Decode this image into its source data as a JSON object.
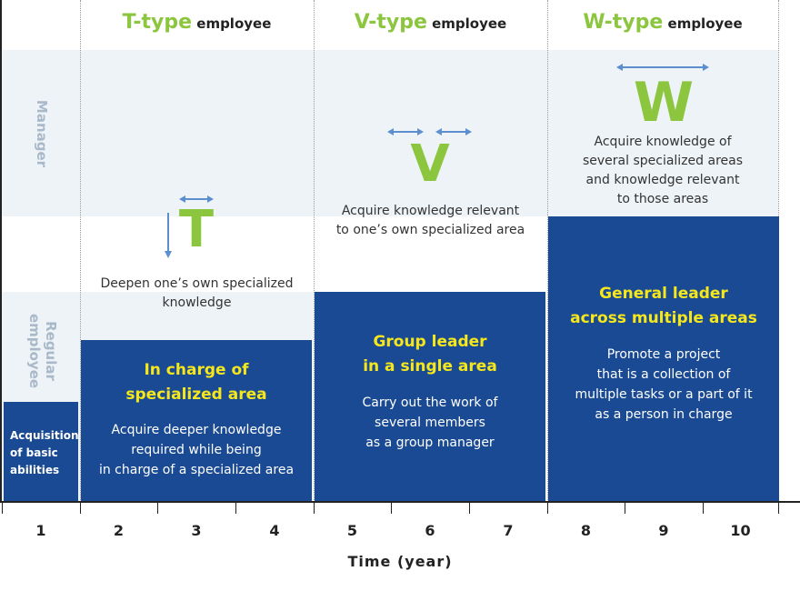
{
  "columns": [
    {
      "letter": "T-type",
      "suffix": " employee"
    },
    {
      "letter": "V-type",
      "suffix": " employee"
    },
    {
      "letter": "W-type",
      "suffix": " employee"
    }
  ],
  "side_labels": {
    "manager": "Manager",
    "regular_line1": "Regular",
    "regular_line2": "employee"
  },
  "boxes": {
    "basic": {
      "lines": [
        "Acquisition",
        "of basic",
        "abilities"
      ]
    },
    "t": {
      "title": [
        "In charge of",
        "specialized area"
      ],
      "desc": [
        "Acquire deeper knowledge",
        "required while being",
        "in charge of a specialized area"
      ]
    },
    "v": {
      "title": [
        "Group leader",
        "in a single area"
      ],
      "desc": [
        "Carry out the work of",
        "several members",
        "as a group manager"
      ]
    },
    "w": {
      "title": [
        "General leader",
        "across multiple areas"
      ],
      "desc": [
        "Promote a project",
        "that is a collection of",
        "multiple tasks or a part of it",
        "as a person in charge"
      ]
    }
  },
  "symbols": {
    "t": {
      "letter": "T",
      "text": [
        "Deepen one’s own specialized",
        "knowledge"
      ]
    },
    "v": {
      "letter": "V",
      "text": [
        "Acquire knowledge relevant",
        "to one’s own specialized area"
      ]
    },
    "w": {
      "letter": "W",
      "text": [
        "Acquire knowledge of",
        "several specialized areas",
        "and knowledge relevant",
        "to those areas"
      ]
    }
  },
  "axis": {
    "title": "Time (year)",
    "ticks": [
      "1",
      "2",
      "3",
      "4",
      "5",
      "6",
      "7",
      "8",
      "9",
      "10"
    ]
  },
  "colors": {
    "box": "#1a4a93",
    "highlight": "#f5e71c",
    "accent": "#8cc63f",
    "arrow": "#5b8fd0",
    "band": "#eef3f7",
    "side_label": "#a9b9c9"
  },
  "icons": [
    "double-arrow-icon",
    "down-arrow-icon"
  ]
}
